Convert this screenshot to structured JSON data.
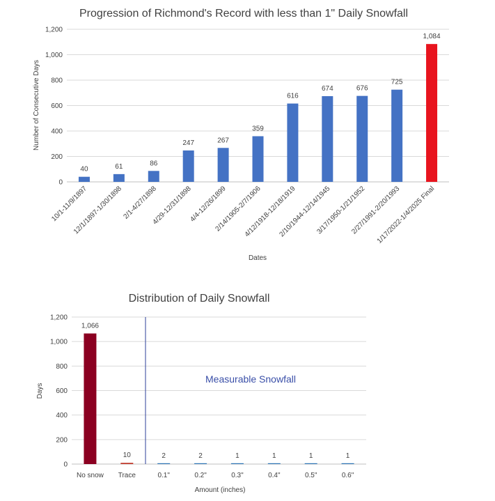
{
  "chart_data": [
    {
      "type": "bar",
      "title": "Progression of Richmond's Record with less than 1\" Daily Snowfall",
      "xlabel": "Dates",
      "ylabel": "Number  of Consecutive Days",
      "ylim": [
        0,
        1200
      ],
      "yticks": [
        "0",
        "200",
        "400",
        "600",
        "800",
        "1,000",
        "1,200"
      ],
      "grid": true,
      "categories": [
        "10/1-11/9/1897",
        "12/1/1897-1/30/1898",
        "2/1-4/27/1898",
        "4/29-12/31/1898",
        "4/4-12/26/1899",
        "2/14/1905-2/7/1906",
        "4/12/1918-12/18/1919",
        "2/10/1944-12/14/1945",
        "3/17/1950-1/21/1952",
        "2/27/1991-2/20/1993",
        "1/17/2022-1/4/2025 Final"
      ],
      "values": [
        40,
        61,
        86,
        247,
        267,
        359,
        616,
        674,
        676,
        725,
        1084
      ],
      "data_labels": [
        "40",
        "61",
        "86",
        "247",
        "267",
        "359",
        "616",
        "674",
        "676",
        "725",
        "1,084"
      ],
      "colors": [
        "#4472c4",
        "#4472c4",
        "#4472c4",
        "#4472c4",
        "#4472c4",
        "#4472c4",
        "#4472c4",
        "#4472c4",
        "#4472c4",
        "#4472c4",
        "#e8141e"
      ]
    },
    {
      "type": "bar",
      "title": "Distribution of Daily Snowfall",
      "xlabel": "Amount (inches)",
      "ylabel": "Days",
      "ylim": [
        0,
        1200
      ],
      "yticks": [
        "0",
        "200",
        "400",
        "600",
        "800",
        "1,000",
        "1,200"
      ],
      "grid": true,
      "categories": [
        "No snow",
        "Trace",
        "0.1\"",
        "0.2\"",
        "0.3\"",
        "0.4\"",
        "0.5\"",
        "0.6\""
      ],
      "values": [
        1066,
        10,
        2,
        2,
        1,
        1,
        1,
        1
      ],
      "data_labels": [
        "1,066",
        "10",
        "2",
        "2",
        "1",
        "1",
        "1",
        "1"
      ],
      "colors": [
        "#8b0021",
        "#c0392b",
        "#2e75b6",
        "#2e75b6",
        "#2e75b6",
        "#2e75b6",
        "#2e75b6",
        "#2e75b6"
      ],
      "annotation": "Measurable Snowfall",
      "annotation_color": "#3a4fa8",
      "divider_color": "#2e3f9a"
    }
  ]
}
